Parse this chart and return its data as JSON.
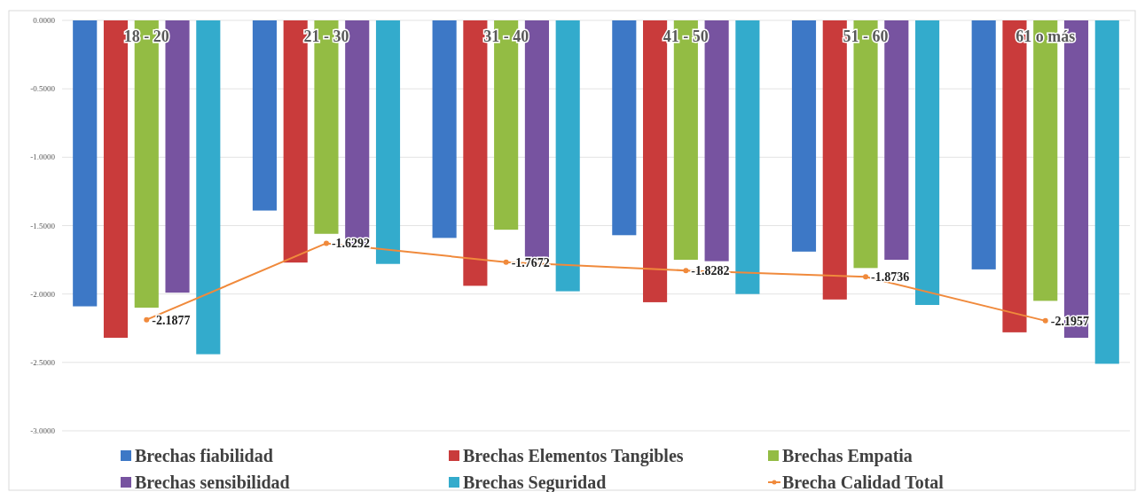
{
  "chart_data": {
    "type": "bar",
    "categories": [
      "18 - 20",
      "21 - 30",
      "31 - 40",
      "41 - 50",
      "51 - 60",
      "61 o más"
    ],
    "series": [
      {
        "name": "Brechas fiabilidad",
        "color": "#3d78c6",
        "values": [
          -2.09,
          -1.39,
          -1.59,
          -1.57,
          -1.69,
          -1.82
        ]
      },
      {
        "name": "Brechas Elementos Tangibles",
        "color": "#c93b3b",
        "values": [
          -2.32,
          -1.77,
          -1.94,
          -2.06,
          -2.04,
          -2.28
        ]
      },
      {
        "name": "Brechas Empatia",
        "color": "#93bc44",
        "values": [
          -2.1,
          -1.56,
          -1.53,
          -1.75,
          -1.81,
          -2.05
        ]
      },
      {
        "name": "Brechas sensibilidad",
        "color": "#7753a0",
        "values": [
          -1.99,
          -1.63,
          -1.76,
          -1.76,
          -1.75,
          -2.32
        ]
      },
      {
        "name": "Brechas Seguridad",
        "color": "#33abcc",
        "values": [
          -2.44,
          -1.78,
          -1.98,
          -2.0,
          -2.08,
          -2.51
        ]
      },
      {
        "name": "Brecha Calidad Total",
        "type": "line",
        "color": "#f08a3c",
        "marker": "circle",
        "values": [
          -2.1877,
          -1.6292,
          -1.7672,
          -1.8282,
          -1.8736,
          -2.1957
        ],
        "value_labels": [
          "-2.1877",
          "-1.6292",
          "-1.7672",
          "-1.8282",
          "-1.8736",
          "-2.1957"
        ]
      }
    ],
    "ylim": [
      -3,
      0
    ],
    "yticks": [
      {
        "value": 0,
        "label": "0.0000"
      },
      {
        "value": -0.5,
        "label": "-0.5000"
      },
      {
        "value": -1,
        "label": "-1.0000"
      },
      {
        "value": -1.5,
        "label": "-1.5000"
      },
      {
        "value": -2,
        "label": "-2.0000"
      },
      {
        "value": -2.5,
        "label": "-2.5000"
      },
      {
        "value": -3,
        "label": "-3.0000"
      }
    ],
    "grid": "y",
    "legend": "bottom"
  }
}
